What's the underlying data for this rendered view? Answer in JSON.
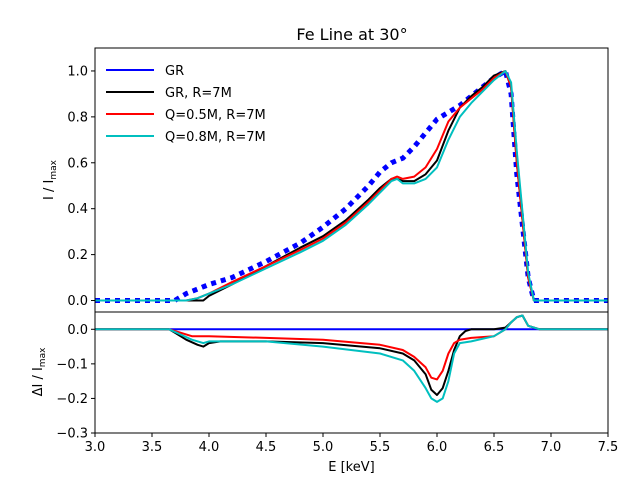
{
  "chart_data": [
    {
      "type": "line",
      "title": "Fe Line at 30°",
      "xlabel": "",
      "ylabel": "I / I",
      "ylabel_sub": "max",
      "xlim": [
        3.0,
        7.5
      ],
      "ylim": [
        -0.05,
        1.1
      ],
      "yticks": [
        "0.0",
        "0.2",
        "0.4",
        "0.6",
        "0.8",
        "1.0"
      ],
      "ytick_values": [
        0.0,
        0.2,
        0.4,
        0.6,
        0.8,
        1.0
      ],
      "legend_location": "upper-left",
      "series": [
        {
          "name": "GR",
          "color": "#0000ff",
          "style": "dotted",
          "x": [
            3.0,
            3.5,
            3.7,
            3.8,
            4.0,
            4.2,
            4.5,
            4.8,
            5.0,
            5.2,
            5.4,
            5.5,
            5.6,
            5.7,
            5.8,
            5.9,
            6.0,
            6.1,
            6.2,
            6.3,
            6.4,
            6.5,
            6.6,
            6.65,
            6.7,
            6.8,
            6.85,
            7.0,
            7.5
          ],
          "y": [
            0.0,
            0.0,
            0.0,
            0.03,
            0.07,
            0.1,
            0.17,
            0.25,
            0.32,
            0.4,
            0.5,
            0.56,
            0.6,
            0.62,
            0.67,
            0.73,
            0.79,
            0.82,
            0.85,
            0.89,
            0.93,
            0.97,
            1.0,
            0.9,
            0.55,
            0.1,
            0.0,
            0.0,
            0.0
          ]
        },
        {
          "name": "GR, R=7M",
          "color": "#000000",
          "style": "solid",
          "x": [
            3.0,
            3.8,
            3.9,
            3.95,
            4.0,
            4.2,
            4.5,
            4.8,
            5.0,
            5.2,
            5.4,
            5.5,
            5.6,
            5.65,
            5.7,
            5.8,
            5.9,
            6.0,
            6.1,
            6.2,
            6.3,
            6.4,
            6.5,
            6.6,
            6.65,
            6.7,
            6.8,
            6.85,
            7.0,
            7.5
          ],
          "y": [
            0.0,
            0.0,
            0.0,
            0.0,
            0.02,
            0.07,
            0.15,
            0.23,
            0.28,
            0.35,
            0.44,
            0.49,
            0.53,
            0.53,
            0.52,
            0.52,
            0.55,
            0.61,
            0.74,
            0.84,
            0.89,
            0.93,
            0.98,
            1.0,
            0.93,
            0.6,
            0.1,
            0.0,
            0.0,
            0.0
          ]
        },
        {
          "name": "Q=0.5M, R=7M",
          "color": "#ff0000",
          "style": "solid",
          "x": [
            3.0,
            3.6,
            3.8,
            3.9,
            4.0,
            4.2,
            4.5,
            4.8,
            5.0,
            5.2,
            5.4,
            5.5,
            5.6,
            5.65,
            5.7,
            5.8,
            5.9,
            6.0,
            6.1,
            6.2,
            6.3,
            6.4,
            6.5,
            6.6,
            6.65,
            6.7,
            6.8,
            6.85,
            7.0,
            7.5
          ],
          "y": [
            0.0,
            0.0,
            0.0,
            0.01,
            0.03,
            0.08,
            0.15,
            0.22,
            0.27,
            0.34,
            0.43,
            0.48,
            0.53,
            0.54,
            0.53,
            0.54,
            0.58,
            0.66,
            0.78,
            0.84,
            0.88,
            0.92,
            0.97,
            1.0,
            0.93,
            0.6,
            0.1,
            0.0,
            0.0,
            0.0
          ]
        },
        {
          "name": "Q=0.8M, R=7M",
          "color": "#00bfbf",
          "style": "solid",
          "x": [
            3.0,
            3.6,
            3.8,
            3.9,
            4.0,
            4.2,
            4.5,
            4.8,
            5.0,
            5.2,
            5.4,
            5.5,
            5.6,
            5.65,
            5.7,
            5.8,
            5.9,
            6.0,
            6.1,
            6.2,
            6.3,
            6.4,
            6.5,
            6.6,
            6.65,
            6.7,
            6.8,
            6.85,
            7.0,
            7.5
          ],
          "y": [
            0.0,
            0.0,
            0.0,
            0.01,
            0.03,
            0.07,
            0.14,
            0.21,
            0.26,
            0.33,
            0.42,
            0.47,
            0.52,
            0.53,
            0.51,
            0.51,
            0.53,
            0.58,
            0.7,
            0.8,
            0.86,
            0.91,
            0.96,
            1.0,
            0.95,
            0.65,
            0.12,
            0.0,
            0.0,
            0.0
          ]
        }
      ]
    },
    {
      "type": "line",
      "xlabel": "E [keV]",
      "ylabel": "ΔI / I",
      "ylabel_sub": "max",
      "xlim": [
        3.0,
        7.5
      ],
      "ylim": [
        -0.3,
        0.05
      ],
      "xticks": [
        "3.0",
        "3.5",
        "4.0",
        "4.5",
        "5.0",
        "5.5",
        "6.0",
        "6.5",
        "7.0",
        "7.5"
      ],
      "xtick_values": [
        3.0,
        3.5,
        4.0,
        4.5,
        5.0,
        5.5,
        6.0,
        6.5,
        7.0,
        7.5
      ],
      "yticks": [
        "0.0",
        "−0.1",
        "−0.2",
        "−0.3"
      ],
      "ytick_values": [
        0.0,
        -0.1,
        -0.2,
        -0.3
      ],
      "series": [
        {
          "name": "GR",
          "color": "#0000ff",
          "style": "solid",
          "x": [
            3.0,
            7.5
          ],
          "y": [
            0.0,
            0.0
          ]
        },
        {
          "name": "GR, R=7M",
          "color": "#000000",
          "style": "solid",
          "x": [
            3.0,
            3.65,
            3.7,
            3.8,
            3.9,
            3.95,
            4.0,
            4.1,
            4.5,
            5.0,
            5.5,
            5.7,
            5.8,
            5.9,
            5.95,
            6.0,
            6.05,
            6.1,
            6.15,
            6.2,
            6.25,
            6.3,
            6.5,
            6.6,
            6.65,
            6.7,
            6.75,
            6.8,
            6.9,
            7.5
          ],
          "y": [
            0.0,
            0.0,
            -0.01,
            -0.03,
            -0.045,
            -0.05,
            -0.04,
            -0.035,
            -0.035,
            -0.04,
            -0.055,
            -0.07,
            -0.09,
            -0.13,
            -0.175,
            -0.19,
            -0.17,
            -0.12,
            -0.06,
            -0.02,
            -0.005,
            0.0,
            0.0,
            0.005,
            0.02,
            0.035,
            0.04,
            0.01,
            0.0,
            0.0
          ]
        },
        {
          "name": "Q=0.5M, R=7M",
          "color": "#ff0000",
          "style": "solid",
          "x": [
            3.0,
            3.65,
            3.75,
            3.85,
            4.0,
            4.5,
            5.0,
            5.5,
            5.7,
            5.8,
            5.9,
            5.95,
            6.0,
            6.05,
            6.1,
            6.15,
            6.2,
            6.3,
            6.5,
            6.6,
            6.65,
            6.7,
            6.75,
            6.8,
            6.9,
            7.5
          ],
          "y": [
            0.0,
            0.0,
            -0.01,
            -0.02,
            -0.02,
            -0.025,
            -0.03,
            -0.045,
            -0.06,
            -0.08,
            -0.11,
            -0.14,
            -0.145,
            -0.12,
            -0.07,
            -0.04,
            -0.03,
            -0.025,
            -0.02,
            0.0,
            0.02,
            0.035,
            0.04,
            0.01,
            0.0,
            0.0
          ]
        },
        {
          "name": "Q=0.8M, R=7M",
          "color": "#00bfbf",
          "style": "solid",
          "x": [
            3.0,
            3.65,
            3.75,
            3.85,
            3.95,
            4.0,
            4.1,
            4.5,
            5.0,
            5.5,
            5.7,
            5.8,
            5.9,
            5.95,
            6.0,
            6.05,
            6.1,
            6.15,
            6.2,
            6.3,
            6.5,
            6.6,
            6.65,
            6.7,
            6.75,
            6.8,
            6.9,
            7.5
          ],
          "y": [
            0.0,
            0.0,
            -0.015,
            -0.03,
            -0.04,
            -0.035,
            -0.035,
            -0.035,
            -0.05,
            -0.07,
            -0.09,
            -0.12,
            -0.17,
            -0.2,
            -0.21,
            -0.2,
            -0.15,
            -0.07,
            -0.04,
            -0.035,
            -0.02,
            0.0,
            0.02,
            0.035,
            0.04,
            0.01,
            0.0,
            0.0
          ]
        }
      ]
    }
  ]
}
